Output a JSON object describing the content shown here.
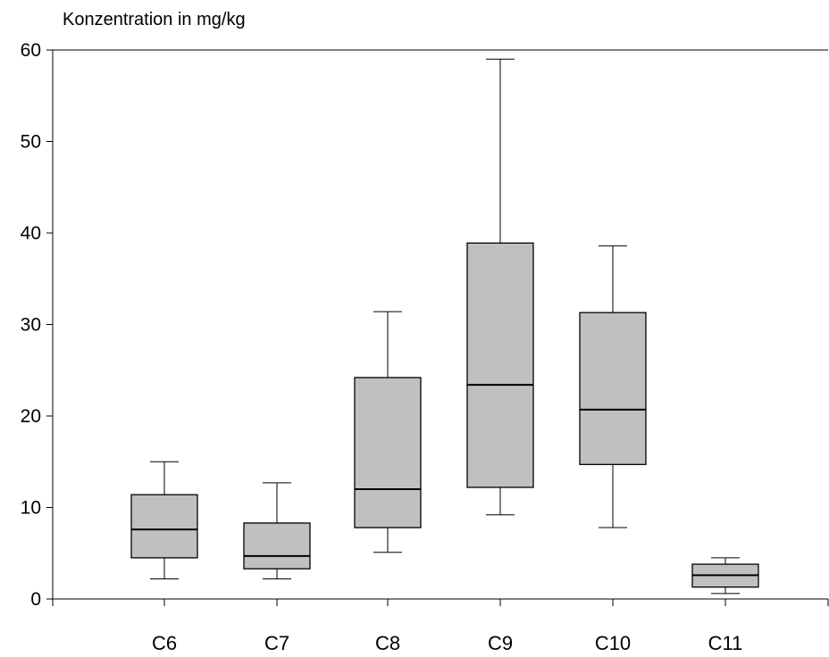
{
  "chart_data": {
    "type": "boxplot",
    "title": "",
    "ylabel": "Konzentration in mg/kg",
    "xlabel": "",
    "ylim": [
      0,
      60
    ],
    "yticks": [
      0,
      10,
      20,
      30,
      40,
      50,
      60
    ],
    "grid": false,
    "colors": {
      "box_fill": "#c0c0c0",
      "stroke": "#000000",
      "background": "#ffffff"
    },
    "categories": [
      "C6",
      "C7",
      "C8",
      "C9",
      "C10",
      "C11"
    ],
    "boxes": [
      {
        "category": "C6",
        "min": 2.2,
        "q1": 4.5,
        "median": 7.6,
        "q3": 11.4,
        "max": 15.0
      },
      {
        "category": "C7",
        "min": 2.2,
        "q1": 3.3,
        "median": 4.7,
        "q3": 8.3,
        "max": 12.7
      },
      {
        "category": "C8",
        "min": 5.1,
        "q1": 7.8,
        "median": 12.0,
        "q3": 24.2,
        "max": 31.4
      },
      {
        "category": "C9",
        "min": 9.2,
        "q1": 12.2,
        "median": 23.4,
        "q3": 38.9,
        "max": 59.0
      },
      {
        "category": "C10",
        "min": 7.8,
        "q1": 14.7,
        "median": 20.7,
        "q3": 31.3,
        "max": 38.6
      },
      {
        "category": "C11",
        "min": 0.6,
        "q1": 1.3,
        "median": 2.6,
        "q3": 3.8,
        "max": 4.5
      }
    ]
  }
}
